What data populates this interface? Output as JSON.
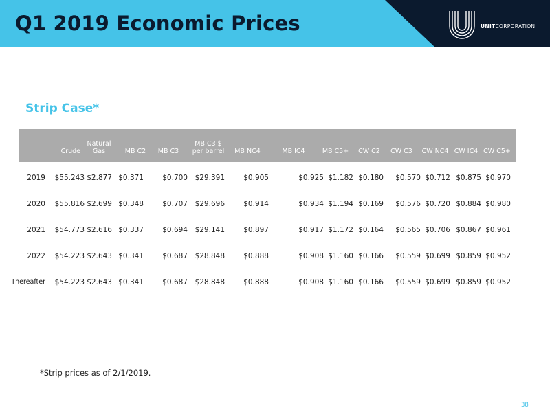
{
  "header": {
    "title": "Q1 2019 Economic Prices",
    "logo_text_bold": "UNIT",
    "logo_text_regular": "CORPORATION",
    "banner_color": "#45c3e8",
    "dark_color": "#0b1a2e"
  },
  "section": {
    "subtitle": "Strip Case*"
  },
  "table": {
    "columns": [
      "",
      "Crude",
      "Natural Gas",
      "MB C2",
      "MB C3",
      "MB C3 $ per barrel",
      "MB NC4",
      "MB IC4",
      "MB C5+",
      "CW C2",
      "CW C3",
      "CW NC4",
      "CW IC4",
      "CW C5+"
    ],
    "column_lines": {
      "natural_gas": [
        "Natural",
        "Gas"
      ],
      "mb_c3_barrel": [
        "MB C3 $",
        "per barrel"
      ]
    },
    "rows": [
      {
        "label": "2019",
        "values": [
          "$55.243",
          "$2.877",
          "$0.371",
          "$0.700",
          "$29.391",
          "$0.905",
          "$0.925",
          "$1.182",
          "$0.180",
          "$0.570",
          "$0.712",
          "$0.875",
          "$0.970"
        ]
      },
      {
        "label": "2020",
        "values": [
          "$55.816",
          "$2.699",
          "$0.348",
          "$0.707",
          "$29.696",
          "$0.914",
          "$0.934",
          "$1.194",
          "$0.169",
          "$0.576",
          "$0.720",
          "$0.884",
          "$0.980"
        ]
      },
      {
        "label": "2021",
        "values": [
          "$54.773",
          "$2.616",
          "$0.337",
          "$0.694",
          "$29.141",
          "$0.897",
          "$0.917",
          "$1.172",
          "$0.164",
          "$0.565",
          "$0.706",
          "$0.867",
          "$0.961"
        ]
      },
      {
        "label": "2022",
        "values": [
          "$54.223",
          "$2.643",
          "$0.341",
          "$0.687",
          "$28.848",
          "$0.888",
          "$0.908",
          "$1.160",
          "$0.166",
          "$0.559",
          "$0.699",
          "$0.859",
          "$0.952"
        ]
      },
      {
        "label": "Thereafter",
        "values": [
          "$54.223",
          "$2.643",
          "$0.341",
          "$0.687",
          "$28.848",
          "$0.888",
          "$0.908",
          "$1.160",
          "$0.166",
          "$0.559",
          "$0.699",
          "$0.859",
          "$0.952"
        ]
      }
    ]
  },
  "footnote": "*Strip prices as of 2/1/2019.",
  "page_number": "38"
}
